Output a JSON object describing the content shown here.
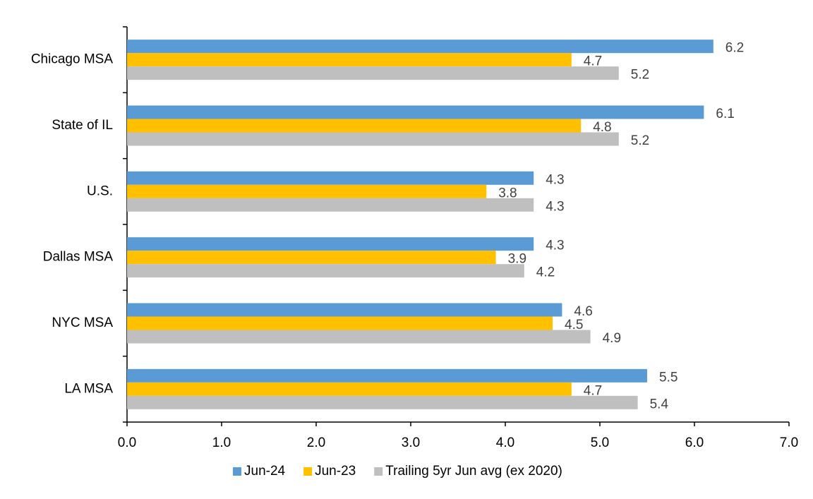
{
  "chart_data": {
    "type": "bar",
    "orientation": "horizontal",
    "categories": [
      "Chicago MSA",
      "State of IL",
      "U.S.",
      "Dallas MSA",
      "NYC MSA",
      "LA MSA"
    ],
    "series": [
      {
        "name": "Jun-24",
        "color": "#5b9bd5",
        "values": [
          6.2,
          6.1,
          4.3,
          4.3,
          4.6,
          5.5
        ]
      },
      {
        "name": "Jun-23",
        "color": "#ffc000",
        "values": [
          4.7,
          4.8,
          3.8,
          3.9,
          4.5,
          4.7
        ]
      },
      {
        "name": "Trailing 5yr Jun avg (ex 2020)",
        "color": "#bfbfbf",
        "values": [
          5.2,
          5.2,
          4.3,
          4.2,
          4.9,
          5.4
        ]
      }
    ],
    "xlim": [
      0,
      7
    ],
    "xticks": [
      {
        "value": 0,
        "label": "0.0"
      },
      {
        "value": 1,
        "label": "1.0"
      },
      {
        "value": 2,
        "label": "2.0"
      },
      {
        "value": 3,
        "label": "3.0"
      },
      {
        "value": 4,
        "label": "4.0"
      },
      {
        "value": 5,
        "label": "5.0"
      },
      {
        "value": 6,
        "label": "6.0"
      },
      {
        "value": 7,
        "label": "7.0"
      }
    ],
    "legend": "bottom"
  }
}
